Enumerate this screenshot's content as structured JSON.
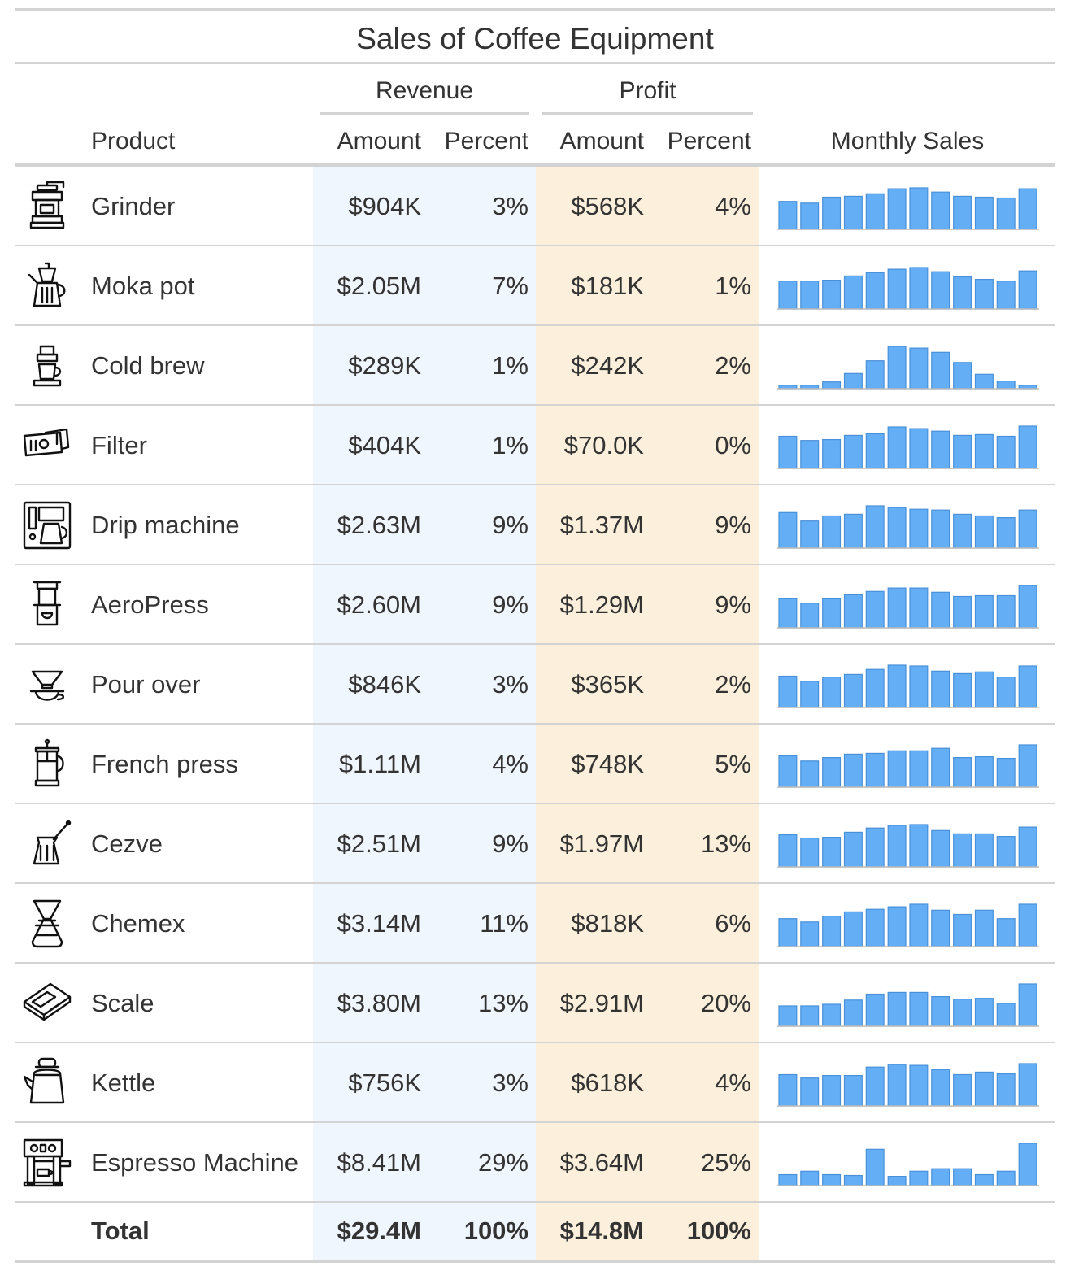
{
  "title": "Sales of Coffee Equipment",
  "spanners": {
    "revenue": "Revenue",
    "profit": "Profit"
  },
  "columns": {
    "product": "Product",
    "rev_amount": "Amount",
    "rev_percent": "Percent",
    "prof_amount": "Amount",
    "prof_percent": "Percent",
    "monthly": "Monthly Sales"
  },
  "colors": {
    "bar": "#63aef5",
    "bar_stroke": "#4a90d9",
    "revenue_band": "#f0f6fd",
    "profit_band": "#fcf0dc",
    "rule": "#d3d3d3"
  },
  "rows": [
    {
      "icon": "grinder-icon",
      "product": "Grinder",
      "rev_amount": "$904K",
      "rev_percent": "3%",
      "prof_amount": "$568K",
      "prof_percent": "4%",
      "monthly": [
        0.66,
        0.62,
        0.76,
        0.78,
        0.84,
        0.96,
        0.98,
        0.88,
        0.78,
        0.76,
        0.74,
        0.96
      ]
    },
    {
      "icon": "moka-pot-icon",
      "product": "Moka pot",
      "rev_amount": "$2.05M",
      "rev_percent": "7%",
      "prof_amount": "$181K",
      "prof_percent": "1%",
      "monthly": [
        0.66,
        0.66,
        0.68,
        0.78,
        0.86,
        0.94,
        0.98,
        0.88,
        0.76,
        0.7,
        0.66,
        0.9
      ]
    },
    {
      "icon": "cold-brew-icon",
      "product": "Cold brew",
      "rev_amount": "$289K",
      "rev_percent": "1%",
      "prof_amount": "$242K",
      "prof_percent": "2%",
      "monthly": [
        0.08,
        0.08,
        0.16,
        0.36,
        0.66,
        1.0,
        0.96,
        0.86,
        0.62,
        0.34,
        0.18,
        0.08
      ]
    },
    {
      "icon": "filter-icon",
      "product": "Filter",
      "rev_amount": "$404K",
      "rev_percent": "1%",
      "prof_amount": "$70.0K",
      "prof_percent": "0%",
      "monthly": [
        0.76,
        0.66,
        0.68,
        0.78,
        0.82,
        0.98,
        0.94,
        0.88,
        0.78,
        0.8,
        0.76,
        1.0
      ]
    },
    {
      "icon": "drip-machine-icon",
      "product": "Drip machine",
      "rev_amount": "$2.63M",
      "rev_percent": "9%",
      "prof_amount": "$1.37M",
      "prof_percent": "9%",
      "monthly": [
        0.84,
        0.64,
        0.76,
        0.8,
        1.0,
        0.96,
        0.92,
        0.9,
        0.8,
        0.76,
        0.72,
        0.9
      ]
    },
    {
      "icon": "aeropress-icon",
      "product": "AeroPress",
      "rev_amount": "$2.60M",
      "rev_percent": "9%",
      "prof_amount": "$1.29M",
      "prof_percent": "9%",
      "monthly": [
        0.7,
        0.58,
        0.7,
        0.78,
        0.86,
        0.94,
        0.94,
        0.84,
        0.74,
        0.76,
        0.76,
        1.0
      ]
    },
    {
      "icon": "pour-over-icon",
      "product": "Pour over",
      "rev_amount": "$846K",
      "rev_percent": "3%",
      "prof_amount": "$365K",
      "prof_percent": "2%",
      "monthly": [
        0.74,
        0.62,
        0.72,
        0.78,
        0.9,
        1.0,
        0.98,
        0.86,
        0.8,
        0.84,
        0.72,
        0.98
      ]
    },
    {
      "icon": "french-press-icon",
      "product": "French press",
      "rev_amount": "$1.11M",
      "rev_percent": "4%",
      "prof_amount": "$748K",
      "prof_percent": "5%",
      "monthly": [
        0.74,
        0.62,
        0.7,
        0.78,
        0.8,
        0.86,
        0.86,
        0.92,
        0.7,
        0.72,
        0.68,
        1.0
      ]
    },
    {
      "icon": "cezve-icon",
      "product": "Cezve",
      "rev_amount": "$2.51M",
      "rev_percent": "9%",
      "prof_amount": "$1.97M",
      "prof_percent": "13%",
      "monthly": [
        0.76,
        0.68,
        0.7,
        0.82,
        0.92,
        0.98,
        1.0,
        0.86,
        0.78,
        0.78,
        0.72,
        0.94
      ]
    },
    {
      "icon": "chemex-icon",
      "product": "Chemex",
      "rev_amount": "$3.14M",
      "rev_percent": "11%",
      "prof_amount": "$818K",
      "prof_percent": "6%",
      "monthly": [
        0.66,
        0.58,
        0.72,
        0.82,
        0.88,
        0.94,
        1.0,
        0.86,
        0.76,
        0.86,
        0.66,
        1.0
      ]
    },
    {
      "icon": "scale-icon",
      "product": "Scale",
      "rev_amount": "$3.80M",
      "rev_percent": "13%",
      "prof_amount": "$2.91M",
      "prof_percent": "20%",
      "monthly": [
        0.48,
        0.48,
        0.52,
        0.62,
        0.76,
        0.8,
        0.8,
        0.7,
        0.64,
        0.66,
        0.54,
        1.0
      ]
    },
    {
      "icon": "kettle-icon",
      "product": "Kettle",
      "rev_amount": "$756K",
      "rev_percent": "3%",
      "prof_amount": "$618K",
      "prof_percent": "4%",
      "monthly": [
        0.74,
        0.66,
        0.72,
        0.72,
        0.92,
        0.98,
        0.96,
        0.86,
        0.74,
        0.8,
        0.76,
        1.0
      ]
    },
    {
      "icon": "espresso-machine-icon",
      "product": "Espresso Machine",
      "rev_amount": "$8.41M",
      "rev_percent": "29%",
      "prof_amount": "$3.64M",
      "prof_percent": "25%",
      "monthly": [
        0.26,
        0.34,
        0.26,
        0.24,
        0.86,
        0.22,
        0.34,
        0.4,
        0.4,
        0.26,
        0.34,
        1.0
      ]
    }
  ],
  "total": {
    "label": "Total",
    "rev_amount": "$29.4M",
    "rev_percent": "100%",
    "prof_amount": "$14.8M",
    "prof_percent": "100%"
  }
}
